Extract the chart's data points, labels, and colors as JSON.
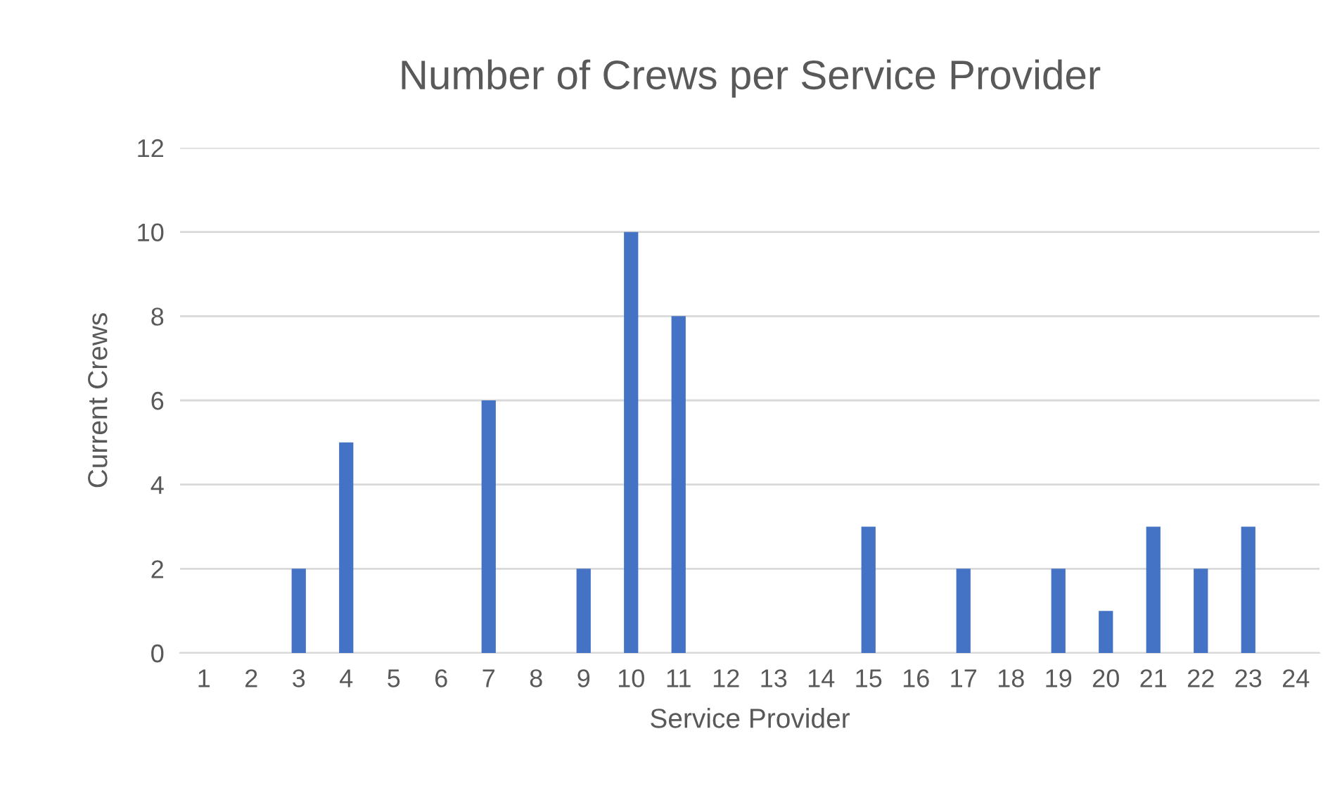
{
  "chart_data": {
    "type": "bar",
    "title": "Number of Crews per Service Provider",
    "xlabel": "Service Provider",
    "ylabel": "Current Crews",
    "categories": [
      "1",
      "2",
      "3",
      "4",
      "5",
      "6",
      "7",
      "8",
      "9",
      "10",
      "11",
      "12",
      "13",
      "14",
      "15",
      "16",
      "17",
      "18",
      "19",
      "20",
      "21",
      "22",
      "23",
      "24"
    ],
    "values": [
      0,
      0,
      2,
      5,
      0,
      0,
      6,
      0,
      2,
      10,
      8,
      0,
      0,
      0,
      3,
      0,
      2,
      0,
      2,
      1,
      3,
      2,
      3,
      0
    ],
    "color": "#4472c4",
    "ylim": [
      0,
      12
    ],
    "yticks": [
      0,
      2,
      4,
      6,
      8,
      10,
      12
    ],
    "grid": "y",
    "legend": false
  }
}
